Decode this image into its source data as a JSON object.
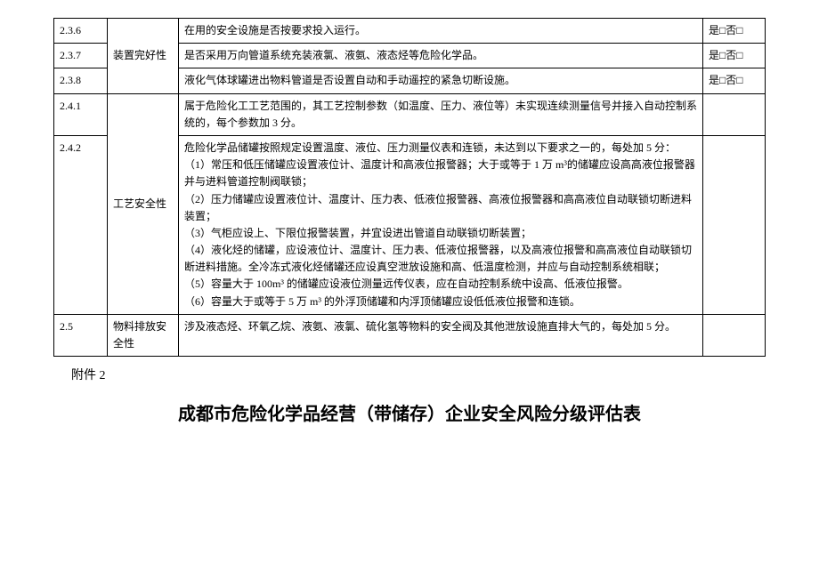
{
  "table": {
    "rows": [
      {
        "num": "2.3.6",
        "cat": "装置完好性",
        "desc": "在用的安全设施是否按要求投入运行。",
        "check": "是□否□"
      },
      {
        "num": "2.3.7",
        "cat": "",
        "desc": "是否采用万向管道系统充装液氯、液氨、液态烃等危险化学品。",
        "check": "是□否□"
      },
      {
        "num": "2.3.8",
        "cat": "",
        "desc": "液化气体球罐进出物料管道是否设置自动和手动遥控的紧急切断设施。",
        "check": "是□否□"
      },
      {
        "num": "2.4.1",
        "cat": "",
        "desc": "属于危险化工工艺范围的，其工艺控制参数（如温度、压力、液位等）未实现连续测量信号并接入自动控制系统的，每个参数加 3 分。",
        "check": ""
      },
      {
        "num": "2.4.2",
        "cat": "工艺安全性",
        "desc": "危险化学品储罐按照规定设置温度、液位、压力测量仪表和连锁，未达到以下要求之一的，每处加 5 分：\n（1）常压和低压储罐应设置液位计、温度计和高液位报警器；大于或等于 1 万 m³的储罐应设高高液位报警器并与进料管道控制阀联锁；\n（2）压力储罐应设置液位计、温度计、压力表、低液位报警器、高液位报警器和高高液位自动联锁切断进料装置；\n（3）气柜应设上、下限位报警装置，并宜设进出管道自动联锁切断装置；\n（4）液化烃的储罐，应设液位计、温度计、压力表、低液位报警器，以及高液位报警和高高液位自动联锁切断进料措施。全冷冻式液化烃储罐还应设真空泄放设施和高、低温度检测，并应与自动控制系统相联；\n（5）容量大于 100m³ 的储罐应设液位测量远传仪表，应在自动控制系统中设高、低液位报警。\n（6）容量大于或等于 5 万 m³ 的外浮顶储罐和内浮顶储罐应设低低液位报警和连锁。",
        "check": ""
      },
      {
        "num": "2.5",
        "cat": "物料排放安全性",
        "desc": "涉及液态烃、环氧乙烷、液氨、液氯、硫化氢等物料的安全阀及其他泄放设施直排大气的，每处加 5 分。",
        "check": ""
      }
    ]
  },
  "attachment_label": "附件 2",
  "doc_title": "成都市危险化学品经营（带储存）企业安全风险分级评估表"
}
